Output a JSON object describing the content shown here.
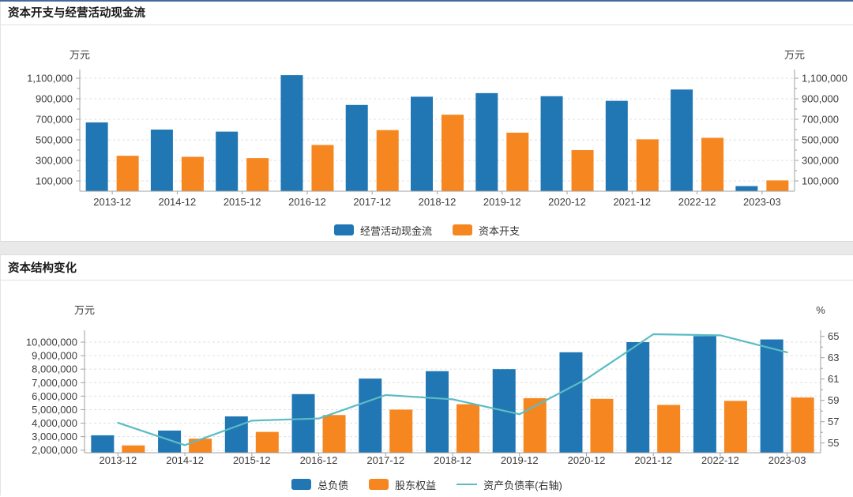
{
  "page": {
    "top_strip_color": "#44699d",
    "background": "#ffffff",
    "separator_color": "#e9e9e9"
  },
  "colors": {
    "bar_blue": "#2077b4",
    "bar_orange": "#f6861f",
    "line_teal": "#5bbcc4",
    "grid": "#e0e0e0",
    "axis": "#a0a0a0",
    "tick_text": "#3c3c3c",
    "title_text": "#1a1a1a"
  },
  "chart_data": [
    {
      "type": "bar",
      "title": "资本开支与经营活动现金流",
      "left_axis_unit": "万元",
      "right_axis_unit": "万元",
      "grid": true,
      "legend_position": "bottom",
      "categories": [
        "2013-12",
        "2014-12",
        "2015-12",
        "2016-12",
        "2017-12",
        "2018-12",
        "2019-12",
        "2020-12",
        "2021-12",
        "2022-12",
        "2023-03"
      ],
      "left_axis": {
        "min": 0,
        "max": 1170000,
        "ticks": [
          100000,
          300000,
          500000,
          700000,
          900000,
          1100000
        ],
        "minor_ticks": [
          200000,
          400000,
          600000,
          800000,
          1000000
        ],
        "tick_labels": [
          "100,000",
          "300,000",
          "500,000",
          "700,000",
          "900,000",
          "1,100,000"
        ]
      },
      "right_axis": {
        "min": 0,
        "max": 1170000,
        "ticks": [
          100000,
          300000,
          500000,
          700000,
          900000,
          1100000
        ],
        "minor_ticks": [
          200000,
          400000,
          600000,
          800000,
          1000000
        ],
        "tick_labels": [
          "100,000",
          "300,000",
          "500,000",
          "700,000",
          "900,000",
          "1,100,000"
        ]
      },
      "series": [
        {
          "name": "经营活动现金流",
          "type": "bar",
          "axis": "left",
          "color": "#2077b4",
          "values": [
            670000,
            600000,
            580000,
            1130000,
            840000,
            920000,
            955000,
            925000,
            880000,
            990000,
            50000
          ]
        },
        {
          "name": "资本开支",
          "type": "bar",
          "axis": "left",
          "color": "#f6861f",
          "values": [
            345000,
            335000,
            322000,
            450000,
            595000,
            745000,
            570000,
            400000,
            505000,
            520000,
            105000
          ]
        }
      ]
    },
    {
      "type": "bar+line",
      "title": "资本结构变化",
      "left_axis_unit": "万元",
      "right_axis_unit": "%",
      "grid": true,
      "legend_position": "bottom",
      "categories": [
        "2013-12",
        "2014-12",
        "2015-12",
        "2016-12",
        "2017-12",
        "2018-12",
        "2019-12",
        "2020-12",
        "2021-12",
        "2022-12",
        "2023-03"
      ],
      "left_axis": {
        "min": 1800000,
        "max": 10880000,
        "ticks": [
          2000000,
          3000000,
          4000000,
          5000000,
          6000000,
          7000000,
          8000000,
          9000000,
          10000000
        ],
        "minor_ticks": [],
        "tick_labels": [
          "2,000,000",
          "3,000,000",
          "4,000,000",
          "5,000,000",
          "6,000,000",
          "7,000,000",
          "8,000,000",
          "9,000,000",
          "10,000,000"
        ]
      },
      "right_axis": {
        "min": 54.1,
        "max": 65.6,
        "ticks": [
          55,
          57,
          59,
          61,
          63,
          65
        ],
        "minor_ticks": [
          56,
          58,
          60,
          62,
          64
        ],
        "tick_labels": [
          "55",
          "57",
          "59",
          "61",
          "63",
          "65"
        ]
      },
      "series": [
        {
          "name": "总负债",
          "type": "bar",
          "axis": "left",
          "color": "#2077b4",
          "values": [
            3100000,
            3450000,
            4500000,
            6150000,
            7300000,
            7850000,
            8000000,
            9250000,
            10000000,
            10450000,
            10200000
          ]
        },
        {
          "name": "股东权益",
          "type": "bar",
          "axis": "left",
          "color": "#f6861f",
          "values": [
            2350000,
            2850000,
            3350000,
            4600000,
            5000000,
            5400000,
            5850000,
            5800000,
            5350000,
            5650000,
            5900000
          ]
        },
        {
          "name": "资产负债率(右轴)",
          "type": "line",
          "axis": "right",
          "color": "#5bbcc4",
          "values": [
            56.9,
            54.8,
            57.1,
            57.3,
            59.5,
            59.1,
            57.7,
            61.0,
            65.2,
            65.1,
            63.5
          ]
        }
      ]
    }
  ]
}
